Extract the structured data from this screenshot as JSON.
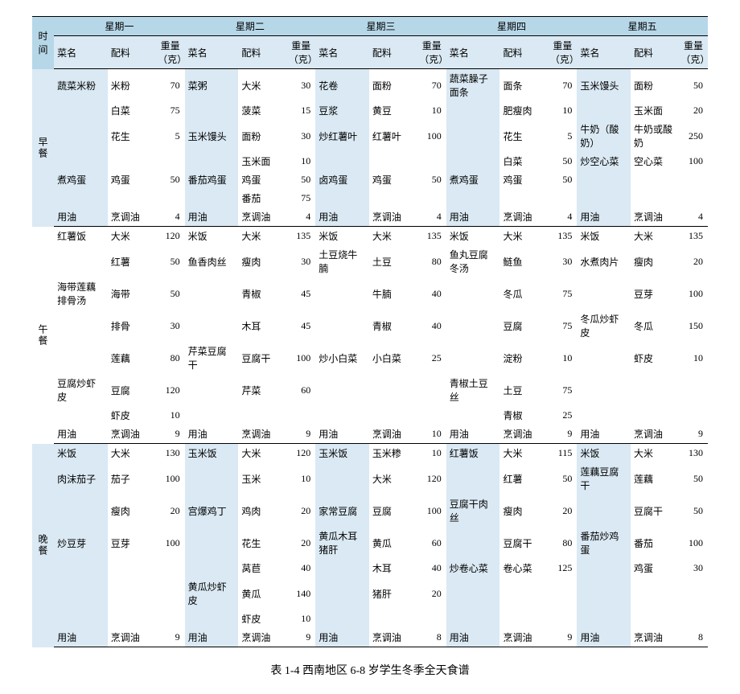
{
  "caption": "表 1-4 西南地区 6-8 岁学生冬季全天食谱",
  "timeHeader": "时间",
  "days": [
    "星期一",
    "星期二",
    "星期三",
    "星期四",
    "星期五"
  ],
  "subHeaders": [
    "菜名",
    "配料",
    "重量（克）"
  ],
  "meals": [
    {
      "name": "早餐",
      "rows": [
        [
          [
            "蔬菜米粉",
            "米粉",
            "70"
          ],
          [
            "菜粥",
            "大米",
            "30"
          ],
          [
            "花卷",
            "面粉",
            "70"
          ],
          [
            "蔬菜臊子面条",
            "面条",
            "70"
          ],
          [
            "玉米馒头",
            "面粉",
            "50"
          ]
        ],
        [
          [
            "",
            "白菜",
            "75"
          ],
          [
            "",
            "菠菜",
            "15"
          ],
          [
            "豆浆",
            "黄豆",
            "10"
          ],
          [
            "",
            "肥瘦肉",
            "10"
          ],
          [
            "",
            "玉米面",
            "20"
          ]
        ],
        [
          [
            "",
            "花生",
            "5"
          ],
          [
            "玉米馒头",
            "面粉",
            "30"
          ],
          [
            "炒红薯叶",
            "红薯叶",
            "100"
          ],
          [
            "",
            "花生",
            "5"
          ],
          [
            "牛奶（酸奶）",
            "牛奶或酸奶",
            "250"
          ]
        ],
        [
          [
            "",
            "",
            ""
          ],
          [
            "",
            "玉米面",
            "10"
          ],
          [
            "",
            "",
            ""
          ],
          [
            "",
            "白菜",
            "50"
          ],
          [
            "炒空心菜",
            "空心菜",
            "100"
          ]
        ],
        [
          [
            "煮鸡蛋",
            "鸡蛋",
            "50"
          ],
          [
            "番茄鸡蛋",
            "鸡蛋",
            "50"
          ],
          [
            "卤鸡蛋",
            "鸡蛋",
            "50"
          ],
          [
            "煮鸡蛋",
            "鸡蛋",
            "50"
          ],
          [
            "",
            "",
            ""
          ]
        ],
        [
          [
            "",
            "",
            ""
          ],
          [
            "",
            "番茄",
            "75"
          ],
          [
            "",
            "",
            ""
          ],
          [
            "",
            "",
            ""
          ],
          [
            "",
            "",
            ""
          ]
        ],
        [
          [
            "用油",
            "烹调油",
            "4"
          ],
          [
            "用油",
            "烹调油",
            "4"
          ],
          [
            "用油",
            "烹调油",
            "4"
          ],
          [
            "用油",
            "烹调油",
            "4"
          ],
          [
            "用油",
            "烹调油",
            "4"
          ]
        ]
      ]
    },
    {
      "name": "午餐",
      "rows": [
        [
          [
            "红薯饭",
            "大米",
            "120"
          ],
          [
            "米饭",
            "大米",
            "135"
          ],
          [
            "米饭",
            "大米",
            "135"
          ],
          [
            "米饭",
            "大米",
            "135"
          ],
          [
            "米饭",
            "大米",
            "135"
          ]
        ],
        [
          [
            "",
            "红薯",
            "50"
          ],
          [
            "鱼香肉丝",
            "瘦肉",
            "30"
          ],
          [
            "土豆烧牛腩",
            "土豆",
            "80"
          ],
          [
            "鱼丸豆腐冬汤",
            "鲢鱼",
            "30"
          ],
          [
            "水煮肉片",
            "瘦肉",
            "20"
          ]
        ],
        [
          [
            "海带莲藕排骨汤",
            "海带",
            "50"
          ],
          [
            "",
            "青椒",
            "45"
          ],
          [
            "",
            "牛腩",
            "40"
          ],
          [
            "",
            "冬瓜",
            "75"
          ],
          [
            "",
            "豆芽",
            "100"
          ]
        ],
        [
          [
            "",
            "排骨",
            "30"
          ],
          [
            "",
            "木耳",
            "45"
          ],
          [
            "",
            "青椒",
            "40"
          ],
          [
            "",
            "豆腐",
            "75"
          ],
          [
            "冬瓜炒虾皮",
            "冬瓜",
            "150"
          ]
        ],
        [
          [
            "",
            "莲藕",
            "80"
          ],
          [
            "芹菜豆腐干",
            "豆腐干",
            "100"
          ],
          [
            "炒小白菜",
            "小白菜",
            "25"
          ],
          [
            "",
            "淀粉",
            "10"
          ],
          [
            "",
            "虾皮",
            "10"
          ]
        ],
        [
          [
            "豆腐炒虾皮",
            "豆腐",
            "120"
          ],
          [
            "",
            "芹菜",
            "60"
          ],
          [
            "",
            "",
            ""
          ],
          [
            "青椒土豆丝",
            "土豆",
            "75"
          ],
          [
            "",
            "",
            ""
          ]
        ],
        [
          [
            "",
            "虾皮",
            "10"
          ],
          [
            "",
            "",
            ""
          ],
          [
            "",
            "",
            ""
          ],
          [
            "",
            "青椒",
            "25"
          ],
          [
            "",
            "",
            ""
          ]
        ],
        [
          [
            "用油",
            "烹调油",
            "9"
          ],
          [
            "用油",
            "烹调油",
            "9"
          ],
          [
            "用油",
            "烹调油",
            "10"
          ],
          [
            "用油",
            "烹调油",
            "9"
          ],
          [
            "用油",
            "烹调油",
            "9"
          ]
        ]
      ]
    },
    {
      "name": "晚餐",
      "rows": [
        [
          [
            "米饭",
            "大米",
            "130"
          ],
          [
            "玉米饭",
            "大米",
            "120"
          ],
          [
            "玉米饭",
            "玉米糁",
            "10"
          ],
          [
            "红薯饭",
            "大米",
            "115"
          ],
          [
            "米饭",
            "大米",
            "130"
          ]
        ],
        [
          [
            "肉沫茄子",
            "茄子",
            "100"
          ],
          [
            "",
            "玉米",
            "10"
          ],
          [
            "",
            "大米",
            "120"
          ],
          [
            "",
            "红薯",
            "50"
          ],
          [
            "莲藕豆腐干",
            "莲藕",
            "50"
          ]
        ],
        [
          [
            "",
            "瘦肉",
            "20"
          ],
          [
            "宫爆鸡丁",
            "鸡肉",
            "20"
          ],
          [
            "家常豆腐",
            "豆腐",
            "100"
          ],
          [
            "豆腐干肉丝",
            "瘦肉",
            "20"
          ],
          [
            "",
            "豆腐干",
            "50"
          ]
        ],
        [
          [
            "炒豆芽",
            "豆芽",
            "100"
          ],
          [
            "",
            "花生",
            "20"
          ],
          [
            "黄瓜木耳猪肝",
            "黄瓜",
            "60"
          ],
          [
            "",
            "豆腐干",
            "80"
          ],
          [
            "番茄炒鸡蛋",
            "番茄",
            "100"
          ]
        ],
        [
          [
            "",
            "",
            ""
          ],
          [
            "",
            "莴苣",
            "40"
          ],
          [
            "",
            "木耳",
            "40"
          ],
          [
            "炒卷心菜",
            "卷心菜",
            "125"
          ],
          [
            "",
            "鸡蛋",
            "30"
          ]
        ],
        [
          [
            "",
            "",
            ""
          ],
          [
            "黄瓜炒虾皮",
            "黄瓜",
            "140"
          ],
          [
            "",
            "猪肝",
            "20"
          ],
          [
            "",
            "",
            ""
          ],
          [
            "",
            "",
            ""
          ]
        ],
        [
          [
            "",
            "",
            ""
          ],
          [
            "",
            "虾皮",
            "10"
          ],
          [
            "",
            "",
            ""
          ],
          [
            "",
            "",
            ""
          ],
          [
            "",
            "",
            ""
          ]
        ],
        [
          [
            "用油",
            "烹调油",
            "9"
          ],
          [
            "用油",
            "烹调油",
            "9"
          ],
          [
            "用油",
            "烹调油",
            "8"
          ],
          [
            "用油",
            "烹调油",
            "9"
          ],
          [
            "用油",
            "烹调油",
            "8"
          ]
        ]
      ]
    }
  ]
}
